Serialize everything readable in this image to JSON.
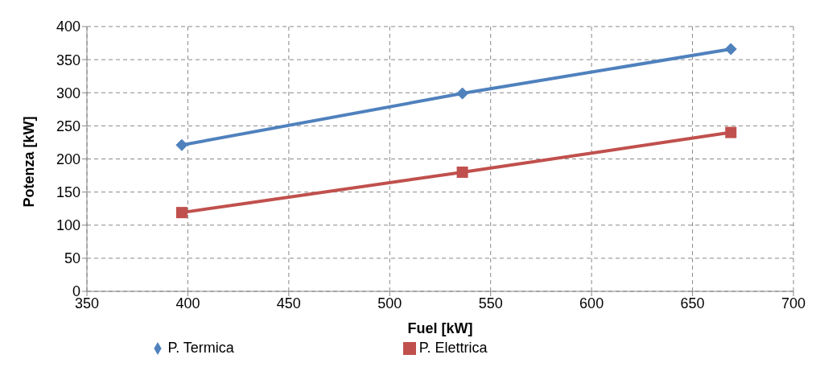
{
  "chart_data": {
    "type": "line",
    "xlabel": "Fuel [kW]",
    "ylabel": "Potenza [kW]",
    "x": [
      397,
      536,
      669
    ],
    "series": [
      {
        "name": "P. Termica",
        "color": "#4f81bd",
        "values": [
          221,
          299,
          366
        ],
        "marker": "diamond"
      },
      {
        "name": "P. Elettrica",
        "color": "#c0504d",
        "values": [
          119,
          180,
          240
        ],
        "marker": "square"
      }
    ],
    "xlim": [
      350,
      700
    ],
    "xticks": [
      350,
      400,
      450,
      500,
      550,
      600,
      650,
      700
    ],
    "ylim": [
      0,
      400
    ],
    "yticks": [
      0,
      50,
      100,
      150,
      200,
      250,
      300,
      350,
      400
    ],
    "grid": true,
    "legend": "bottom",
    "line_style": "solid"
  }
}
